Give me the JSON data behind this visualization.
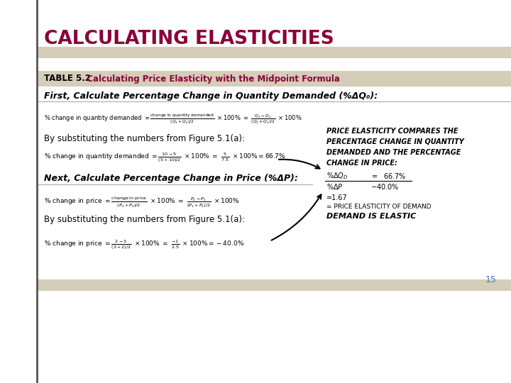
{
  "title_main": "CALCULATING ELASTICITIES",
  "title_main_color": "#8B0038",
  "table_header": "TABLE 5.2",
  "table_header_color": "#000000",
  "table_title": "  Calculating Price Elasticity with the Midpoint Formula",
  "table_title_color": "#8B0038",
  "section1_header": "First, Calculate Percentage Change in Quantity Demanded (%ΔQ₀):",
  "section2_header": "Next, Calculate Percentage Change in Price (%ΔP):",
  "by_sub1": "By substituting the numbers from Figure 5.1(a):",
  "by_sub2": "By substituting the numbers from Figure 5.1(a):",
  "bg_color": "#FFFFFF",
  "header_bar_color": "#D4CDB8",
  "section_divider_color": "#999999",
  "right_box_lines": [
    "PRICE ELASTICITY COMPARES THE",
    "PERCENTAGE CHANGE IN QUANTITY",
    "DEMANDED AND THE PERCENTAGE",
    "CHANGE IN PRICE:"
  ],
  "right_box_equals": "=1.67",
  "right_box_ped": "= PRICE ELASTICITY OF DEMAND",
  "right_box_conclusion": "DEMAND IS ELASTIC",
  "page_number": "15",
  "left_border_color": "#555555",
  "page_num_color": "#4472C4"
}
